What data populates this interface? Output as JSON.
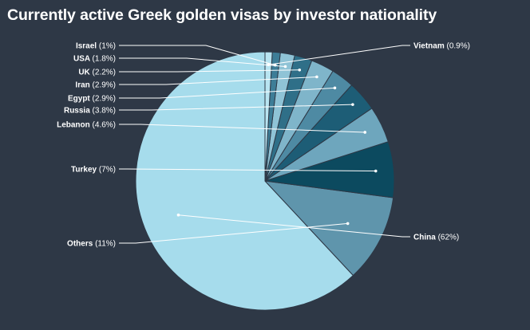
{
  "chart_data": {
    "type": "pie",
    "title": "Currently active Greek golden visas by investor nationality",
    "slices": [
      {
        "label": "China",
        "value": 62,
        "pct_text": "(62%)",
        "color": "#a6dcec"
      },
      {
        "label": "Others",
        "value": 11,
        "pct_text": "(11%)",
        "color": "#5f95ac"
      },
      {
        "label": "Turkey",
        "value": 7,
        "pct_text": "(7%)",
        "color": "#0c4a5f"
      },
      {
        "label": "Lebanon",
        "value": 4.6,
        "pct_text": "(4.6%)",
        "color": "#6ea6bd"
      },
      {
        "label": "Russia",
        "value": 3.8,
        "pct_text": "(3.8%)",
        "color": "#1d5d76"
      },
      {
        "label": "Egypt",
        "value": 2.9,
        "pct_text": "(2.9%)",
        "color": "#4e8aa3"
      },
      {
        "label": "Iran",
        "value": 2.9,
        "pct_text": "(2.9%)",
        "color": "#7fb5ca"
      },
      {
        "label": "UK",
        "value": 2.2,
        "pct_text": "(2.2%)",
        "color": "#2f6f88"
      },
      {
        "label": "USA",
        "value": 1.8,
        "pct_text": "(1.8%)",
        "color": "#8fc3d6"
      },
      {
        "label": "Israel",
        "value": 1,
        "pct_text": "(1%)",
        "color": "#3d7d97"
      },
      {
        "label": "Vietnam",
        "value": 0.9,
        "pct_text": "(0.9%)",
        "color": "#b8e4f1"
      }
    ]
  }
}
